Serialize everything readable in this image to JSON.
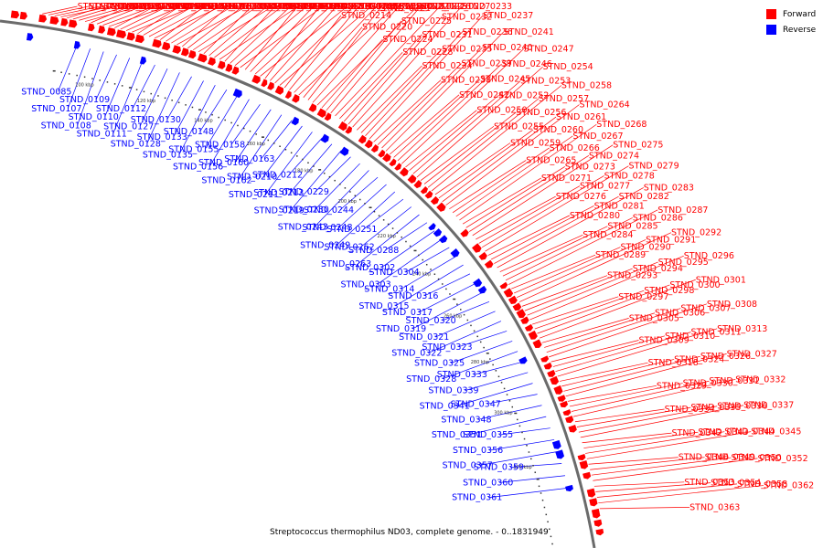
{
  "legend": {
    "forward": {
      "label": "Forward",
      "color": "#ff0000"
    },
    "reverse": {
      "label": "Reverse",
      "color": "#0000ff"
    }
  },
  "caption": "Streptococcus thermophilus ND03, complete genome. - 0..1831949",
  "scale_labels": [
    "100 kbp",
    "120 kbp",
    "140 kbp",
    "160 kbp",
    "180 kbp",
    "200 kbp",
    "220 kbp",
    "240 kbp",
    "260 kbp",
    "280 kbp",
    "300 kbp",
    "320 kbp"
  ],
  "forward_labels": [
    "STND_0113",
    "STND_0122",
    "STND_0123",
    "STND_0125",
    "STND_0126",
    "STND_0134",
    "STND_0136",
    "STND_0137",
    "STND_0142",
    "STND_0143",
    "STND_0151",
    "STND_0153",
    "STND_0154",
    "STND_0157",
    "STND_0161",
    "STND_0164",
    "STND_0166",
    "STND_0167",
    "STND_0168",
    "STND_0169",
    "STND_0170",
    "STND_0175",
    "STND_0180",
    "STND_0184",
    "STND_0185",
    "STND_0186",
    "STND_0187",
    "STND_0188",
    "STND_0189",
    "STND_0190",
    "STND_0191",
    "STND_0194",
    "STND_0196",
    "STND_0199",
    "STND_0200",
    "STND_0201",
    "STND_0202",
    "STND_0203",
    "STND_0204",
    "STND_0205",
    "STND_0206",
    "STND_0207",
    "STND_0208",
    "STND_0209",
    "STND_0214",
    "STND_0215",
    "STND_0216",
    "STND_0217",
    "STND_0220",
    "STND_0221",
    "STND_0222",
    "STND_0223",
    "STND_0224",
    "STND_0225",
    "STND_0226",
    "STND_0227",
    "STND_0228",
    "STND_0231",
    "STND_0232",
    "STND_0233",
    "STND_0234",
    "STND_0235",
    "STND_0236",
    "STND_0237",
    "STND_0238",
    "STND_0239",
    "STND_0240",
    "STND_0241",
    "STND_0242",
    "STND_0245",
    "STND_0246",
    "STND_0247",
    "STND_0250",
    "STND_0252",
    "STND_0253",
    "STND_0254",
    "STND_0255",
    "STND_0256",
    "STND_0257",
    "STND_0258",
    "STND_0259",
    "STND_0260",
    "STND_0261",
    "STND_0264",
    "STND_0265",
    "STND_0266",
    "STND_0267",
    "STND_0268",
    "STND_0271",
    "STND_0273",
    "STND_0274",
    "STND_0275",
    "STND_0276",
    "STND_0277",
    "STND_0278",
    "STND_0279",
    "STND_0280",
    "STND_0281",
    "STND_0282",
    "STND_0283",
    "STND_0284",
    "STND_0285",
    "STND_0286",
    "STND_0287",
    "STND_0289",
    "STND_0290",
    "STND_0291",
    "STND_0292",
    "STND_0293",
    "STND_0294",
    "STND_0295",
    "STND_0296",
    "STND_0297",
    "STND_0298",
    "STND_0300",
    "STND_0301",
    "STND_0305",
    "STND_0306",
    "STND_0307",
    "STND_0308",
    "STND_0309",
    "STND_0310",
    "STND_0311",
    "STND_0313",
    "STND_0318",
    "STND_0324",
    "STND_0326",
    "STND_0327",
    "STND_0329",
    "STND_0330",
    "STND_0331",
    "STND_0332",
    "STND_0334",
    "STND_0335",
    "STND_0336",
    "STND_0337",
    "STND_0342",
    "STND_0343",
    "STND_0344",
    "STND_0345",
    "STND_0346",
    "STND_0349",
    "STND_0350",
    "STND_0352",
    "STND_0353",
    "STND_0354",
    "STND_0358",
    "STND_0362",
    "STND_0363"
  ],
  "reverse_labels": [
    "STND_0085",
    "STND_0107",
    "STND_0108",
    "STND_0109",
    "STND_0110",
    "STND_0111",
    "STND_0112",
    "STND_0127",
    "STND_0128",
    "STND_0130",
    "STND_0133",
    "STND_0135",
    "STND_0148",
    "STND_0155",
    "STND_0156",
    "STND_0158",
    "STND_0160",
    "STND_0162",
    "STND_0163",
    "STND_0210",
    "STND_0211",
    "STND_0212",
    "STND_0213",
    "STND_0219",
    "STND_0229",
    "STND_0230",
    "STND_0243",
    "STND_0244",
    "STND_0248",
    "STND_0249",
    "STND_0251",
    "STND_0262",
    "STND_0263",
    "STND_0288",
    "STND_0302",
    "STND_0303",
    "STND_0304",
    "STND_0314",
    "STND_0315",
    "STND_0316",
    "STND_0317",
    "STND_0319",
    "STND_0320",
    "STND_0321",
    "STND_0322",
    "STND_0323",
    "STND_0325",
    "STND_0328",
    "STND_0333",
    "STND_0339",
    "STND_0341",
    "STND_0347",
    "STND_0348",
    "STND_0351",
    "STND_0355",
    "STND_0356",
    "STND_0357",
    "STND_0359",
    "STND_0360",
    "STND_0361"
  ]
}
